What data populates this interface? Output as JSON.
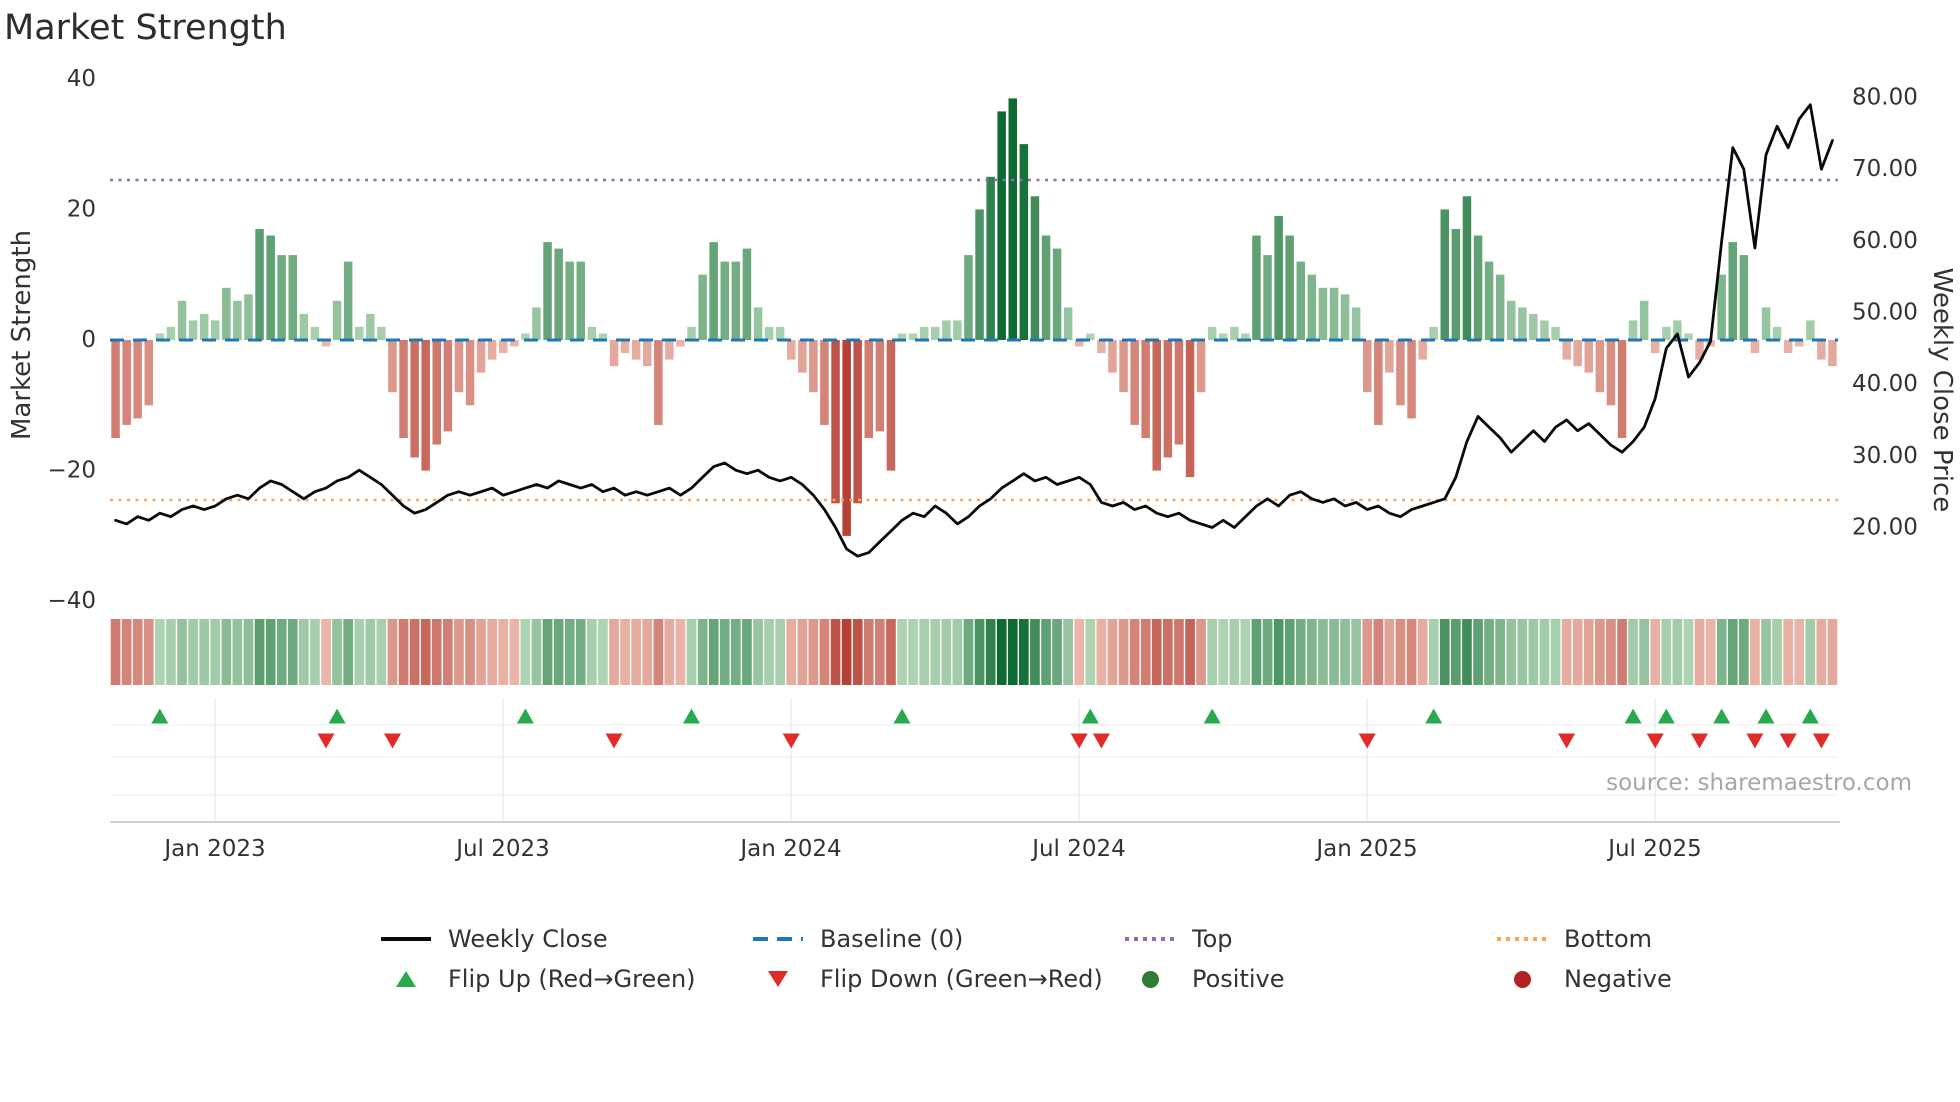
{
  "title": "Market Strength",
  "source_note": "source: sharemaestro.com",
  "axes": {
    "left_label": "Market Strength",
    "right_label": "Weekly Close Price",
    "left_ticks": [
      "40",
      "20",
      "0",
      "−20",
      "−40"
    ],
    "right_ticks": [
      "80.00",
      "70.00",
      "60.00",
      "50.00",
      "40.00",
      "30.00",
      "20.00"
    ],
    "x_ticks": [
      "Jan 2023",
      "Jul 2023",
      "Jan 2024",
      "Jul 2024",
      "Jan 2025",
      "Jul 2025"
    ]
  },
  "legend": {
    "weekly_close": "Weekly Close",
    "baseline": "Baseline (0)",
    "top": "Top",
    "bottom": "Bottom",
    "flip_up": "Flip Up (Red→Green)",
    "flip_down": "Flip Down (Green→Red)",
    "positive": "Positive",
    "negative": "Negative"
  },
  "colors": {
    "line": "#0a0a0a",
    "baseline": "#1f77b4",
    "top": "#9467bd",
    "bottom": "#ffa552",
    "flip_up": "#2aa84d",
    "flip_down": "#e02b2b",
    "positive": "#2e7d32",
    "negative": "#b22222",
    "bar_green_light": "#cfe9cd",
    "bar_green_dark": "#0d6b31",
    "bar_red_light": "#f7cfc2",
    "bar_red_dark": "#b0382e"
  },
  "chart_data": {
    "type": "bar+line",
    "title": "Market Strength",
    "n_points": 156,
    "x_tick_labels": [
      "Jan 2023",
      "Jul 2023",
      "Jan 2024",
      "Jul 2024",
      "Jan 2025",
      "Jul 2025"
    ],
    "x_tick_indices": [
      9,
      35,
      61,
      87,
      113,
      139
    ],
    "left_axis": {
      "label": "Market Strength",
      "range": [
        -40,
        40
      ]
    },
    "right_axis": {
      "label": "Weekly Close Price",
      "range": [
        10,
        83
      ]
    },
    "baseline_value": 0,
    "top_value": 24.5,
    "bottom_value": -24.5,
    "legend_position": "bottom-center",
    "series": [
      {
        "name": "Market Strength",
        "type": "bar",
        "axis": "left",
        "values": [
          -15,
          -13,
          -12,
          -10,
          1,
          2,
          6,
          3,
          4,
          3,
          8,
          6,
          7,
          17,
          16,
          13,
          13,
          4,
          2,
          -1,
          6,
          12,
          2,
          4,
          2,
          -8,
          -15,
          -18,
          -20,
          -16,
          -14,
          -8,
          -10,
          -5,
          -3,
          -2,
          -1,
          1,
          5,
          15,
          14,
          12,
          12,
          2,
          1,
          -4,
          -2,
          -3,
          -4,
          -13,
          -3,
          -1,
          2,
          10,
          15,
          12,
          12,
          14,
          5,
          2,
          2,
          -3,
          -5,
          -8,
          -13,
          -25,
          -30,
          -25,
          -15,
          -14,
          -20,
          1,
          1,
          2,
          2,
          3,
          3,
          13,
          20,
          25,
          35,
          37,
          30,
          22,
          16,
          14,
          5,
          -1,
          1,
          -2,
          -5,
          -8,
          -13,
          -15,
          -20,
          -18,
          -16,
          -21,
          -8,
          2,
          1,
          2,
          1,
          16,
          13,
          19,
          16,
          12,
          10,
          8,
          8,
          7,
          5,
          -8,
          -13,
          -5,
          -10,
          -12,
          -3,
          2,
          20,
          17,
          22,
          16,
          12,
          10,
          6,
          5,
          4,
          3,
          2,
          -3,
          -4,
          -5,
          -8,
          -10,
          -15,
          3,
          6,
          -2,
          2,
          3,
          1,
          -3,
          -1,
          10,
          15,
          13,
          -2,
          5,
          2,
          -2,
          -1,
          3,
          -3,
          -4
        ]
      },
      {
        "name": "Weekly Close",
        "type": "line",
        "axis": "right",
        "values": [
          21.0,
          20.5,
          21.5,
          21.0,
          22.0,
          21.5,
          22.5,
          23.0,
          22.5,
          23.0,
          24.0,
          24.5,
          24.0,
          25.5,
          26.5,
          26.0,
          25.0,
          24.0,
          25.0,
          25.5,
          26.5,
          27.0,
          28.0,
          27.0,
          26.0,
          24.5,
          23.0,
          22.0,
          22.5,
          23.5,
          24.5,
          25.0,
          24.5,
          25.0,
          25.5,
          24.5,
          25.0,
          25.5,
          26.0,
          25.5,
          26.5,
          26.0,
          25.5,
          26.0,
          25.0,
          25.5,
          24.5,
          25.0,
          24.5,
          25.0,
          25.5,
          24.5,
          25.5,
          27.0,
          28.5,
          29.0,
          28.0,
          27.5,
          28.0,
          27.0,
          26.5,
          27.0,
          26.0,
          24.5,
          22.5,
          20.0,
          17.0,
          16.0,
          16.5,
          18.0,
          19.5,
          21.0,
          22.0,
          21.5,
          23.0,
          22.0,
          20.5,
          21.5,
          23.0,
          24.0,
          25.5,
          26.5,
          27.5,
          26.5,
          27.0,
          26.0,
          26.5,
          27.0,
          26.0,
          23.5,
          23.0,
          23.5,
          22.5,
          23.0,
          22.0,
          21.5,
          22.0,
          21.0,
          20.5,
          20.0,
          21.0,
          20.0,
          21.5,
          23.0,
          24.0,
          23.0,
          24.5,
          25.0,
          24.0,
          23.5,
          24.0,
          23.0,
          23.5,
          22.5,
          23.0,
          22.0,
          21.5,
          22.5,
          23.0,
          23.5,
          24.0,
          27.0,
          32.0,
          35.5,
          34.0,
          32.5,
          30.5,
          32.0,
          33.5,
          32.0,
          34.0,
          35.0,
          33.5,
          34.5,
          33.0,
          31.5,
          30.5,
          32.0,
          34.0,
          38.0,
          45.0,
          47.0,
          41.0,
          43.0,
          46.0,
          60.0,
          73.0,
          70.0,
          59.0,
          72.0,
          76.0,
          73.0,
          77.0,
          79.0,
          70.0,
          74.0
        ]
      }
    ],
    "flip_up_indices": [
      4,
      20,
      37,
      52,
      71,
      88,
      99,
      119,
      137,
      140,
      145,
      149,
      153
    ],
    "flip_down_indices": [
      19,
      25,
      45,
      61,
      87,
      89,
      113,
      131,
      139,
      143,
      148,
      151,
      154
    ],
    "heatmap": "strip below chart colored from Market Strength bar values (green positive, red negative, intensity = magnitude)"
  }
}
